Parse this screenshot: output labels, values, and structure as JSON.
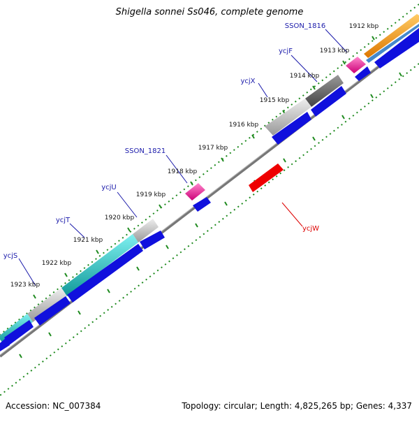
{
  "title": "Shigella sonnei Ss046, complete genome",
  "footer": {
    "accession": "Accession: NC_007384",
    "summary": "Topology: circular; Length: 4,825,265 bp; Genes: 4,337"
  },
  "colors": {
    "tick": "#1e8a1e",
    "gene_label": "#1a1aaa",
    "gene_label_reverse": "#dd0000",
    "backbone": "#888888",
    "cds_forward": "#1010dd",
    "cds_reverse": "#ee0000",
    "pink": "#ff3399",
    "cyan": "#22cccc",
    "gray": "#bbbbbb",
    "dark_gray": "#666666",
    "orange": "#ff9922",
    "steel_blue": "#4488cc"
  },
  "ticks": [
    {
      "label": "1912 kbp"
    },
    {
      "label": "1913 kbp"
    },
    {
      "label": "1914 kbp"
    },
    {
      "label": "1915 kbp"
    },
    {
      "label": "1916 kbp"
    },
    {
      "label": "1917 kbp"
    },
    {
      "label": "1918 kbp"
    },
    {
      "label": "1919 kbp"
    },
    {
      "label": "1920 kbp"
    },
    {
      "label": "1921 kbp"
    },
    {
      "label": "1922 kbp"
    },
    {
      "label": "1923 kbp"
    }
  ],
  "gene_labels": [
    {
      "label": "SSON_1816",
      "strand": "forward"
    },
    {
      "label": "ycjF",
      "strand": "forward"
    },
    {
      "label": "ycjX",
      "strand": "forward"
    },
    {
      "label": "SSON_1821",
      "strand": "forward"
    },
    {
      "label": "ycjU",
      "strand": "forward"
    },
    {
      "label": "ycjT",
      "strand": "forward"
    },
    {
      "label": "ycjS",
      "strand": "forward"
    },
    {
      "label": "ycjW",
      "strand": "reverse"
    }
  ]
}
